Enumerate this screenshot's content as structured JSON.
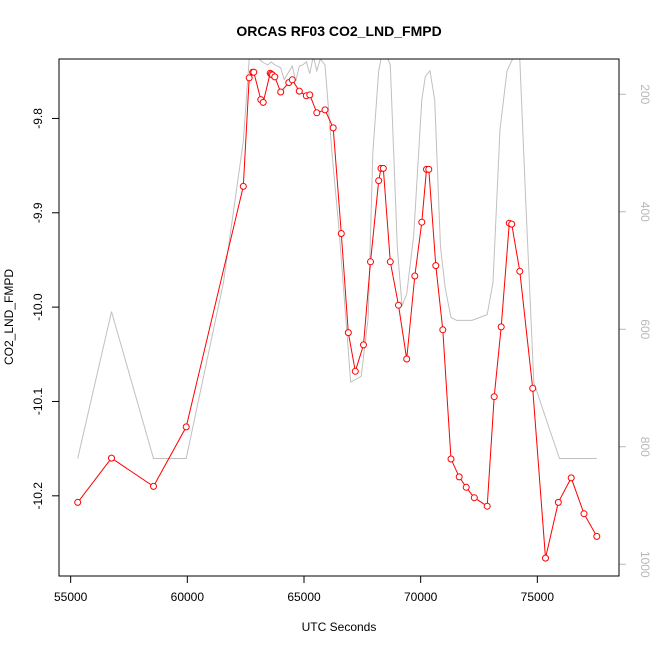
{
  "chart_data": {
    "type": "line",
    "title": "ORCAS RF03 CO2_LND_FMPD",
    "xlabel": "UTC Seconds",
    "ylabel": "CO2_LND_FMPD",
    "xlim": [
      54500,
      78500
    ],
    "ylim": [
      -10.285,
      -9.737
    ],
    "x_ticks": [
      55000,
      60000,
      65000,
      70000,
      75000
    ],
    "y_ticks": [
      -10.2,
      -10.1,
      -10.0,
      -9.9,
      -9.8
    ],
    "y_tick_labels": [
      "-10.2",
      "-10.1",
      "-10.0",
      "-9.9",
      "-9.8"
    ],
    "y2lim": [
      1020,
      140
    ],
    "y2_ticks": [
      200,
      400,
      600,
      800,
      1000
    ],
    "colors": {
      "series": "#ff0000",
      "secondary": "#c0c0c0",
      "axis": "#000000",
      "axis2": "#b8b8b8"
    },
    "series": [
      {
        "color": "#ff0000",
        "markers": "open-circle",
        "x": [
          55300,
          56750,
          58550,
          59950,
          62400,
          62650,
          62800,
          62850,
          63150,
          63250,
          63550,
          63600,
          63650,
          63750,
          64000,
          64350,
          64500,
          64800,
          65100,
          65250,
          65550,
          65900,
          66250,
          66600,
          66900,
          67200,
          67550,
          67850,
          68200,
          68300,
          68400,
          68700,
          69050,
          69400,
          69750,
          70050,
          70250,
          70350,
          70650,
          70950,
          71300,
          71650,
          71950,
          72300,
          72850,
          73150,
          73450,
          73800,
          73900,
          74250,
          74800,
          75350,
          75900,
          76450,
          77000,
          77550
        ],
        "y": [
          -10.207,
          -10.16,
          -10.19,
          -10.127,
          -9.872,
          -9.757,
          -9.751,
          -9.751,
          -9.78,
          -9.783,
          -9.752,
          -9.753,
          -9.754,
          -9.756,
          -9.772,
          -9.762,
          -9.759,
          -9.771,
          -9.776,
          -9.775,
          -9.794,
          -9.791,
          -9.81,
          -9.922,
          -10.027,
          -10.068,
          -10.04,
          -9.952,
          -9.866,
          -9.853,
          -9.853,
          -9.952,
          -9.998,
          -10.055,
          -9.967,
          -9.91,
          -9.854,
          -9.854,
          -9.956,
          -10.024,
          -10.161,
          -10.18,
          -10.191,
          -10.202,
          -10.211,
          -10.095,
          -10.021,
          -9.911,
          -9.912,
          -9.962,
          -10.086,
          -10.266,
          -10.207,
          -10.181,
          -10.219,
          -10.243
        ]
      },
      {
        "color": "#c0c0c0",
        "axis": "right",
        "x": [
          55300,
          56750,
          58550,
          59950,
          61550,
          62400,
          62650,
          62800,
          62950,
          63200,
          63450,
          63600,
          63750,
          64000,
          64150,
          64500,
          64650,
          64800,
          64950,
          65100,
          65250,
          65400,
          65550,
          65700,
          65900,
          66200,
          66500,
          67000,
          67450,
          67750,
          67950,
          68200,
          68400,
          68700,
          69000,
          69200,
          69400,
          69700,
          70050,
          70200,
          70400,
          70600,
          70850,
          71050,
          71300,
          71550,
          72200,
          72850,
          73100,
          73400,
          73700,
          74000,
          74250,
          74500,
          74850,
          75350,
          75950,
          76650,
          77550
        ],
        "y": [
          820,
          570,
          820,
          820,
          520,
          280,
          140,
          130,
          135,
          145,
          150,
          145,
          150,
          155,
          175,
          152,
          178,
          152,
          150,
          145,
          165,
          135,
          160,
          140,
          150,
          300,
          430,
          690,
          680,
          580,
          300,
          160,
          120,
          150,
          460,
          560,
          540,
          440,
          210,
          170,
          160,
          210,
          460,
          530,
          580,
          585,
          585,
          575,
          520,
          260,
          160,
          135,
          140,
          380,
          690,
          750,
          820,
          820,
          820
        ]
      }
    ]
  }
}
